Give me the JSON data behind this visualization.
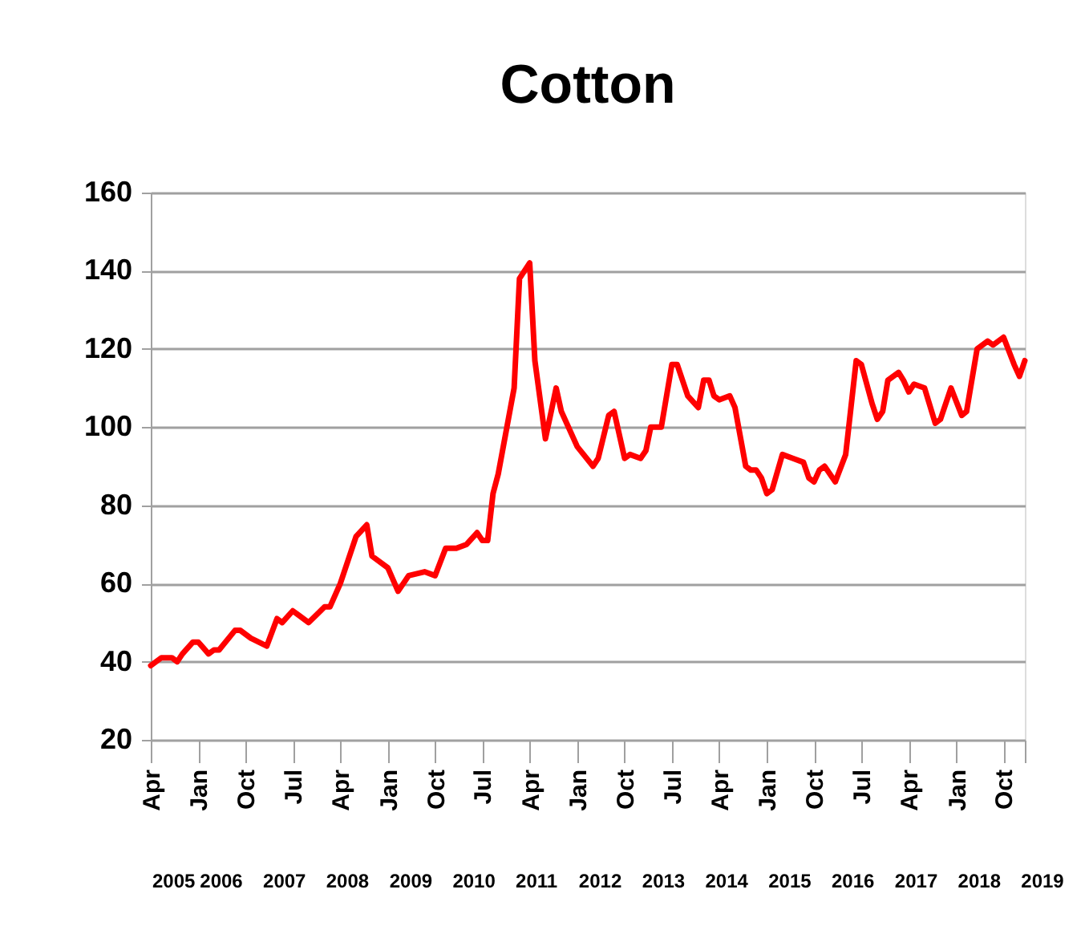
{
  "chart_data": {
    "type": "line",
    "title": "Cotton",
    "x": [
      "2005-04",
      "2005-06",
      "2005-08",
      "2005-09",
      "2005-10",
      "2005-12",
      "2006-01",
      "2006-03",
      "2006-04",
      "2006-05",
      "2006-08",
      "2006-09",
      "2006-11",
      "2007-02",
      "2007-04",
      "2007-05",
      "2007-07",
      "2007-08",
      "2007-10",
      "2008-01",
      "2008-02",
      "2008-04",
      "2008-07",
      "2008-09",
      "2008-10",
      "2009-01",
      "2009-03",
      "2009-05",
      "2009-08",
      "2009-10",
      "2009-12",
      "2010-02",
      "2010-04",
      "2010-06",
      "2010-07",
      "2010-08",
      "2010-09",
      "2010-10",
      "2011-01",
      "2011-02",
      "2011-04",
      "2011-05",
      "2011-07",
      "2011-09",
      "2011-10",
      "2012-01",
      "2012-04",
      "2012-05",
      "2012-07",
      "2012-08",
      "2012-10",
      "2012-11",
      "2013-01",
      "2013-02",
      "2013-03",
      "2013-05",
      "2013-07",
      "2013-08",
      "2013-10",
      "2013-12",
      "2014-01",
      "2014-02",
      "2014-03",
      "2014-04",
      "2014-06",
      "2014-07",
      "2014-09",
      "2014-10",
      "2014-11",
      "2014-12",
      "2015-01",
      "2015-02",
      "2015-04",
      "2015-06",
      "2015-08",
      "2015-09",
      "2015-10",
      "2015-11",
      "2015-12",
      "2016-02",
      "2016-04",
      "2016-06",
      "2016-07",
      "2016-09",
      "2016-10",
      "2016-11",
      "2016-12",
      "2017-02",
      "2017-03",
      "2017-04",
      "2017-05",
      "2017-07",
      "2017-09",
      "2017-10",
      "2017-12",
      "2018-02",
      "2018-03",
      "2018-05",
      "2018-07",
      "2018-08",
      "2018-10",
      "2018-12",
      "2019-01",
      "2019-02"
    ],
    "values": [
      39,
      41,
      41,
      40,
      42,
      45,
      45,
      42,
      43,
      43,
      48,
      48,
      46,
      44,
      51,
      50,
      53,
      52,
      50,
      54,
      54,
      60,
      72,
      75,
      67,
      64,
      58,
      62,
      63,
      62,
      69,
      69,
      70,
      73,
      71,
      71,
      83,
      88,
      110,
      138,
      142,
      117,
      97,
      110,
      104,
      95,
      90,
      92,
      103,
      104,
      92,
      93,
      92,
      94,
      100,
      100,
      116,
      116,
      108,
      105,
      112,
      112,
      108,
      107,
      108,
      105,
      90,
      89,
      89,
      87,
      83,
      84,
      93,
      92,
      91,
      87,
      86,
      89,
      90,
      86,
      93,
      117,
      116,
      106,
      102,
      104,
      112,
      114,
      112,
      109,
      111,
      110,
      101,
      102,
      110,
      103,
      104,
      120,
      122,
      121,
      123,
      116,
      113,
      117
    ],
    "color": "#ff0000",
    "ylim": [
      20,
      160
    ],
    "yticks": [
      20,
      40,
      60,
      80,
      100,
      120,
      140,
      160
    ],
    "xlim": [
      "2005-04",
      "2019-02"
    ],
    "xticks": [
      {
        "value": "2005-04",
        "label": "Apr"
      },
      {
        "value": "2006-01",
        "label": "Jan"
      },
      {
        "value": "2006-10",
        "label": "Oct"
      },
      {
        "value": "2007-07",
        "label": "Jul"
      },
      {
        "value": "2008-04",
        "label": "Apr"
      },
      {
        "value": "2009-01",
        "label": "Jan"
      },
      {
        "value": "2009-10",
        "label": "Oct"
      },
      {
        "value": "2010-07",
        "label": "Jul"
      },
      {
        "value": "2011-04",
        "label": "Apr"
      },
      {
        "value": "2012-01",
        "label": "Jan"
      },
      {
        "value": "2012-10",
        "label": "Oct"
      },
      {
        "value": "2013-07",
        "label": "Jul"
      },
      {
        "value": "2014-04",
        "label": "Apr"
      },
      {
        "value": "2015-01",
        "label": "Jan"
      },
      {
        "value": "2015-10",
        "label": "Oct"
      },
      {
        "value": "2016-07",
        "label": "Jul"
      },
      {
        "value": "2017-04",
        "label": "Apr"
      },
      {
        "value": "2018-01",
        "label": "Jan"
      },
      {
        "value": "2018-10",
        "label": "Oct"
      },
      {
        "value": "2019-02",
        "label": null
      }
    ],
    "annotations": [
      "2005",
      "2006",
      "2007",
      "2008",
      "2009",
      "2010",
      "2011",
      "2012",
      "2013",
      "2014",
      "2015",
      "2016",
      "2017",
      "2018",
      "2019"
    ],
    "grid": "y",
    "line_style": "solid",
    "marker": "none"
  }
}
